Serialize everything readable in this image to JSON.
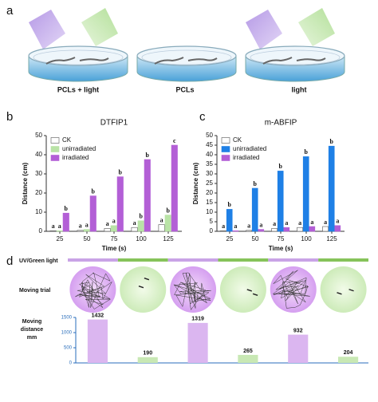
{
  "panel_a": {
    "label": "a",
    "captions": [
      "PCLs + light",
      "PCLs",
      "light"
    ]
  },
  "panel_labels": [
    "b",
    "c",
    "d"
  ],
  "chart_data": [
    {
      "type": "bar",
      "title": "DTFIP1",
      "ylabel": "Distance (cm)",
      "xlabel": "Time (s)",
      "categories": [
        "25",
        "50",
        "75",
        "100",
        "125"
      ],
      "ylim": [
        0,
        50
      ],
      "yticks": [
        0,
        10,
        20,
        30,
        40,
        50
      ],
      "legend": "upper left",
      "series": [
        {
          "name": "CK",
          "color": "#ffffff",
          "values": [
            0.3,
            0.5,
            1.5,
            2,
            3.5
          ],
          "letters": [
            "a",
            "a",
            "a",
            "a",
            "a"
          ]
        },
        {
          "name": "unirradiated",
          "color": "#b9e3a6",
          "values": [
            0.3,
            1,
            3,
            5.5,
            8.5
          ],
          "letters": [
            "a",
            "a",
            "a",
            "b",
            "b"
          ]
        },
        {
          "name": "irradiated",
          "color": "#b35fd6",
          "values": [
            9.5,
            18.5,
            28.5,
            37.5,
            45
          ],
          "letters": [
            "b",
            "b",
            "b",
            "b",
            "c"
          ]
        }
      ]
    },
    {
      "type": "bar",
      "title": "m-ABFIP",
      "ylabel": "Distance (cm)",
      "xlabel": "Time (s)",
      "categories": [
        "25",
        "50",
        "75",
        "100",
        "125"
      ],
      "ylim": [
        0,
        50
      ],
      "yticks": [
        0,
        5,
        10,
        15,
        20,
        25,
        30,
        35,
        40,
        45,
        50
      ],
      "legend": "upper left",
      "series": [
        {
          "name": "CK",
          "color": "#ffffff",
          "values": [
            0.3,
            0.5,
            1.5,
            2,
            2.5
          ],
          "letters": [
            "a",
            "a",
            "a",
            "a",
            "a"
          ]
        },
        {
          "name": "unirradiated",
          "color": "#1f80e6",
          "values": [
            11.5,
            22.5,
            31.5,
            39,
            44.5
          ],
          "letters": [
            "b",
            "b",
            "b",
            "b",
            "b"
          ]
        },
        {
          "name": "irradiated",
          "color": "#b35fd6",
          "values": [
            0.3,
            1,
            2,
            2.5,
            3
          ],
          "letters": [
            "a",
            "a",
            "a",
            "a",
            "a"
          ]
        }
      ]
    },
    {
      "type": "bar",
      "ylabel": [
        "Moving",
        "distance",
        "mm"
      ],
      "row_labels": [
        "UV/Green light",
        "Moving trial"
      ],
      "categories": [
        null,
        null,
        null,
        null,
        null,
        null
      ],
      "values": [
        1432,
        190,
        1319,
        265,
        932,
        204
      ],
      "colors": [
        "#dbb6f0",
        "#c8e8b4",
        "#dbb6f0",
        "#c8e8b4",
        "#dbb6f0",
        "#c8e8b4"
      ],
      "light_colors": [
        "#c9a3e6",
        "#86c35a",
        "#c9a3e6",
        "#86c35a",
        "#c9a3e6",
        "#86c35a"
      ],
      "ylim": [
        0,
        1500
      ],
      "yticks": [
        0,
        500,
        1000,
        1500
      ]
    }
  ]
}
